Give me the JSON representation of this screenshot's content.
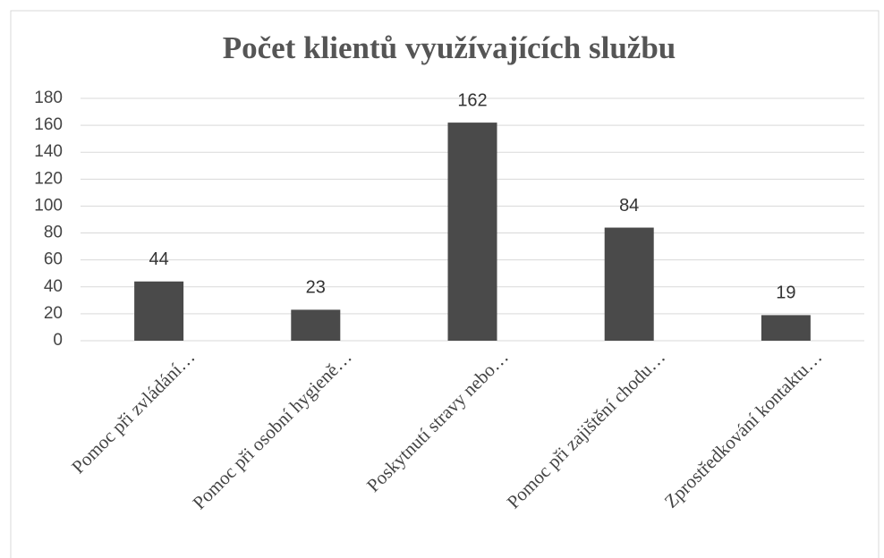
{
  "chart_data": {
    "type": "bar",
    "title": "Počet klientů využívajících službu",
    "categories": [
      "Pomoc při zvládání…",
      "Pomoc při osobní hygieně…",
      "Poskytnutí stravy nebo…",
      "Pomoc při zajištění chodu…",
      "Zprostředkování kontaktu…"
    ],
    "values": [
      44,
      23,
      162,
      84,
      19
    ],
    "color": "#4a4a4a",
    "ylim": [
      0,
      180
    ],
    "yticks": [
      0,
      20,
      40,
      60,
      80,
      100,
      120,
      140,
      160,
      180
    ],
    "grid": true
  }
}
